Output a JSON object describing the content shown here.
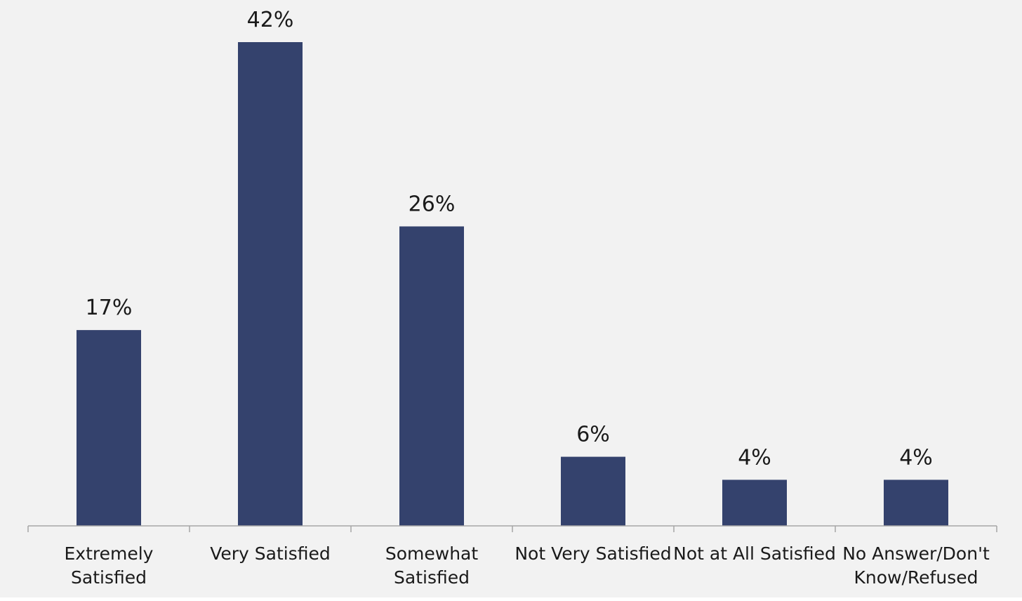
{
  "chart_data": {
    "type": "bar",
    "categories": [
      [
        "Extremely",
        "Satisfied"
      ],
      [
        "Very Satisfied"
      ],
      [
        "Somewhat",
        "Satisfied"
      ],
      [
        "Not Very Satisfied"
      ],
      [
        "Not at All Satisfied"
      ],
      [
        "No Answer/Don't",
        "Know/Refused"
      ]
    ],
    "values": [
      17,
      42,
      26,
      6,
      4,
      4
    ],
    "data_labels": [
      "17%",
      "42%",
      "26%",
      "6%",
      "4%",
      "4%"
    ],
    "title": "",
    "xlabel": "",
    "ylabel": "",
    "ylim": [
      0,
      42
    ],
    "grid": false,
    "legend": "none",
    "colors": {
      "background": "#f2f2f2",
      "bar": "#34426d",
      "axis": "#a6a6a6",
      "text": "#1a1a1a"
    }
  }
}
